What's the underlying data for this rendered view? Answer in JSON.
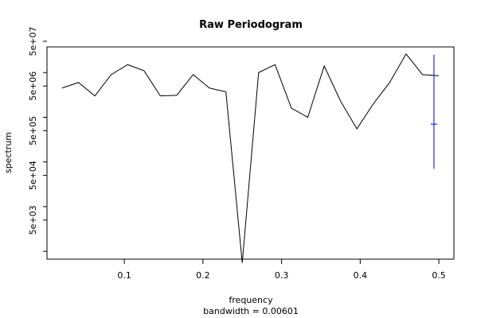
{
  "chart_data": {
    "type": "line",
    "title": "Raw Periodogram",
    "xlabel": "frequency",
    "subtitle": "bandwidth = 0.00601",
    "ylabel": "spectrum",
    "ylog": true,
    "xlim": [
      0.0208,
      0.5
    ],
    "ylim": [
      1000,
      25000000
    ],
    "x_ticks": [
      0.1,
      0.2,
      0.3,
      0.4,
      0.5
    ],
    "x_tick_labels": [
      "0.1",
      "0.2",
      "0.3",
      "0.4",
      "0.5"
    ],
    "y_ticks_labeled": [
      5000,
      50000,
      500000,
      5000000,
      50000000
    ],
    "y_tick_labels": [
      "5e+03",
      "5e+04",
      "5e+05",
      "5e+06",
      "5e+07"
    ],
    "y_ticks_minor": [
      1000,
      10000,
      100000,
      1000000,
      10000000
    ],
    "grid": false,
    "series": [
      {
        "color": "#000000",
        "x": [
          0.0208,
          0.0417,
          0.0625,
          0.0833,
          0.1042,
          0.125,
          0.1458,
          0.1667,
          0.1875,
          0.2083,
          0.2292,
          0.25,
          0.2708,
          0.2917,
          0.3125,
          0.3333,
          0.3542,
          0.375,
          0.3958,
          0.4167,
          0.4375,
          0.4583,
          0.4792,
          0.5
        ],
        "values": [
          4500000,
          6000000,
          3000000,
          9000000,
          15000000,
          11000000,
          3000000,
          3100000,
          9000000,
          4500000,
          3700000,
          550,
          10000000,
          15000000,
          1600000,
          1000000,
          14000000,
          2300000,
          550000,
          2000000,
          6000000,
          26000000,
          9000000,
          8500000
        ]
      }
    ],
    "confidence_bar": {
      "color": "#0000ff",
      "x": 0.4938,
      "center": 700000,
      "lower": 70000,
      "upper": 25000000
    }
  }
}
